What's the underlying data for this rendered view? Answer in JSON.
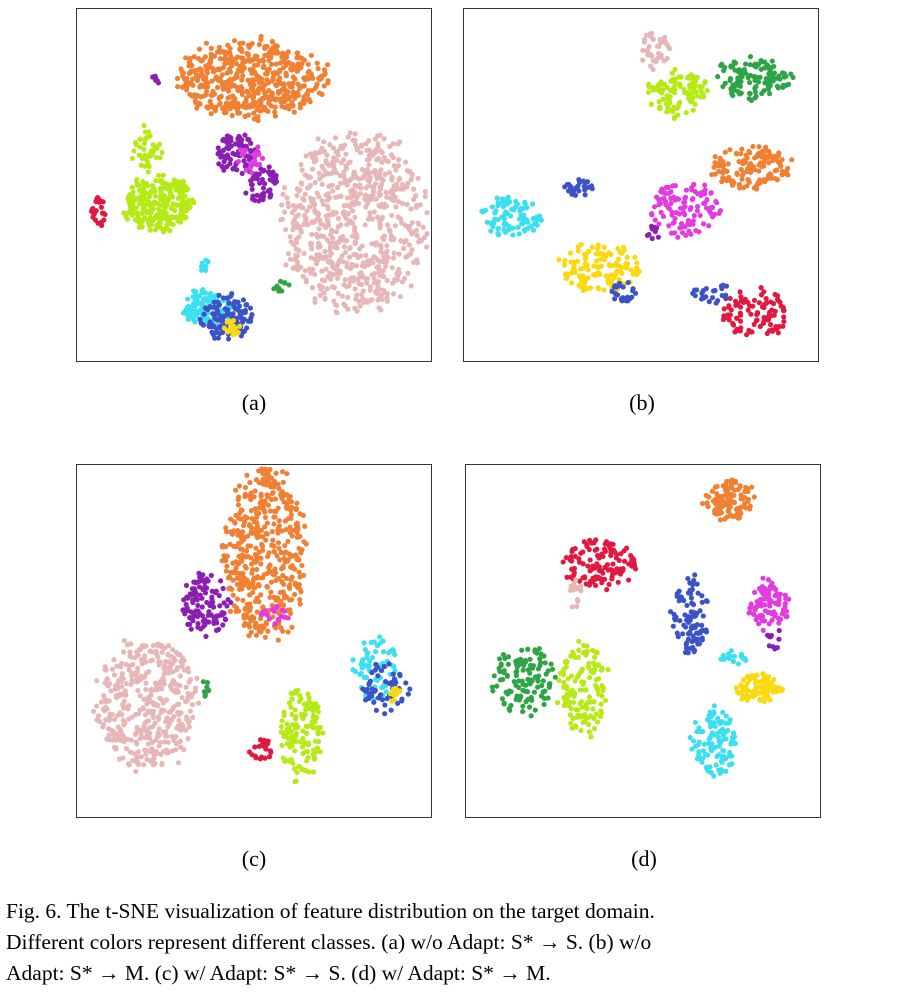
{
  "chart_data": [
    {
      "type": "scatter",
      "label": "(a)"
    },
    {
      "type": "scatter",
      "label": "(b)"
    },
    {
      "type": "scatter",
      "label": "(c)"
    },
    {
      "type": "scatter",
      "label": "(d)"
    }
  ],
  "class_colors": [
    "#f08033",
    "#e7b7b7",
    "#b6ea16",
    "#e1183f",
    "#8b1fb4",
    "#e23ce0",
    "#3cdff0",
    "#3b52c8",
    "#fad90f",
    "#2fa446"
  ],
  "caption": {
    "line1": "Fig. 6.  The t-SNE visualization of feature distribution on the target domain.",
    "line2": "Different colors represent different classes. (a) w/o Adapt: S* → S. (b) w/o",
    "line3": "Adapt: S* → M. (c) w/ Adapt: S* → S. (d) w/ Adapt: S* → M."
  }
}
